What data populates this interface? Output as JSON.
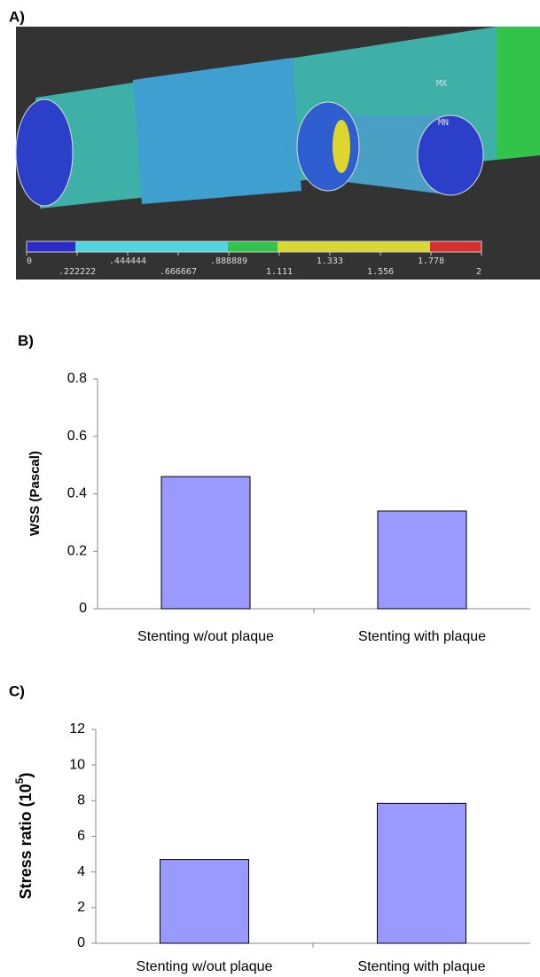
{
  "panel_a": {
    "label": "A)",
    "max_marker": "MX",
    "min_marker": "MN",
    "colorbar_lim": [
      0,
      2
    ],
    "colorbar_ticks": [
      {
        "value": 0,
        "label": "0"
      },
      {
        "value": 0.222222,
        "label": ".222222"
      },
      {
        "value": 0.444444,
        "label": ".444444"
      },
      {
        "value": 0.666667,
        "label": ".666667"
      },
      {
        "value": 0.888889,
        "label": ".888889"
      },
      {
        "value": 1.111,
        "label": "1.111"
      },
      {
        "value": 1.333,
        "label": "1.333"
      },
      {
        "value": 1.556,
        "label": "1.556"
      },
      {
        "value": 1.778,
        "label": "1.778"
      },
      {
        "value": 2,
        "label": "2"
      }
    ]
  },
  "chart_data": [
    {
      "type": "bar",
      "label": "B)",
      "ylabel": "WSS (Pascal)",
      "categories": [
        "Stenting w/out plaque",
        "Stenting with plaque"
      ],
      "values": [
        0.46,
        0.34
      ],
      "color": "#9999ff",
      "ylim": [
        0,
        0.8
      ],
      "yticks": [
        0,
        0.2,
        0.4,
        0.6,
        0.8
      ]
    },
    {
      "type": "bar",
      "label": "C)",
      "ylabel_parts": [
        "Stress ratio (10",
        "5",
        ")"
      ],
      "categories": [
        "Stenting w/out plaque",
        "Stenting with plaque"
      ],
      "values": [
        4.7,
        7.85
      ],
      "color": "#9999ff",
      "ylim": [
        0,
        12
      ],
      "yticks": [
        0,
        2,
        4,
        6,
        8,
        10,
        12
      ]
    }
  ]
}
